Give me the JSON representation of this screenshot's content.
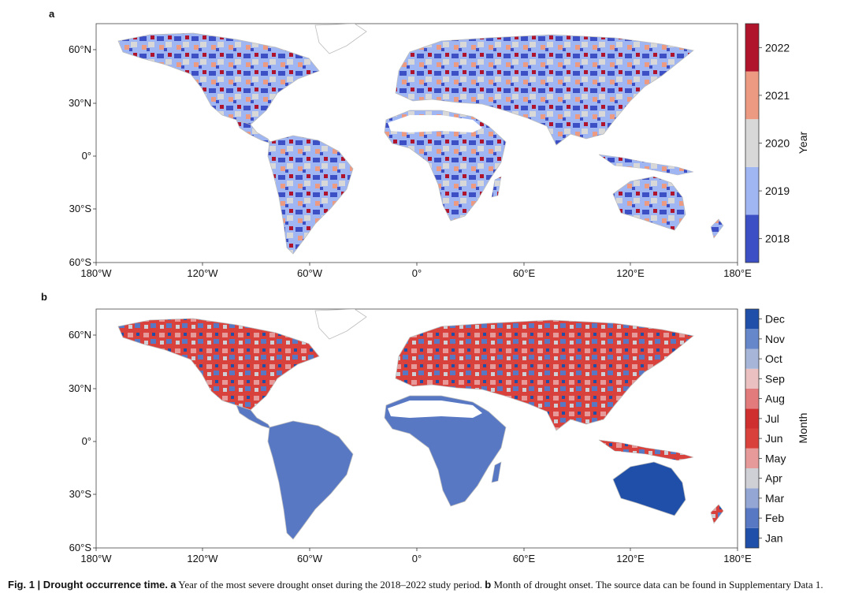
{
  "panels": [
    {
      "letter": "a",
      "colorbar": {
        "title": "Year",
        "labels": [
          "2018",
          "2019",
          "2020",
          "2021",
          "2022"
        ],
        "colors": [
          "#3d4fc4",
          "#9fb6f2",
          "#d8d8d8",
          "#ec9a82",
          "#b0132c"
        ]
      }
    },
    {
      "letter": "b",
      "colorbar": {
        "title": "Month",
        "labels": [
          "Jan",
          "Feb",
          "Mar",
          "Apr",
          "May",
          "Jun",
          "Jul",
          "Aug",
          "Sep",
          "Oct",
          "Nov",
          "Dec"
        ],
        "colors": [
          "#1f4fa8",
          "#5878c4",
          "#93a6d4",
          "#cfcfd6",
          "#e79a9a",
          "#d9413c",
          "#cf2f2f",
          "#e27b7b",
          "#eac0c0",
          "#a7b5d9",
          "#6687c9",
          "#1f4fa8"
        ]
      }
    }
  ],
  "map_axes": {
    "lon_ticks": [
      "180°W",
      "120°W",
      "60°W",
      "0°",
      "60°E",
      "120°E",
      "180°E"
    ],
    "lat_ticks": [
      "60°N",
      "30°N",
      "0°",
      "30°S",
      "60°S"
    ]
  },
  "caption": {
    "label": "Fig. 1 | Drought occurrence time.",
    "a_letter": "a",
    "a_text": "Year of the most severe drought onset during the 2018–2022 study period.",
    "b_letter": "b",
    "b_text": "Month of drought onset. The source data can be found in Supplementary Data 1."
  }
}
